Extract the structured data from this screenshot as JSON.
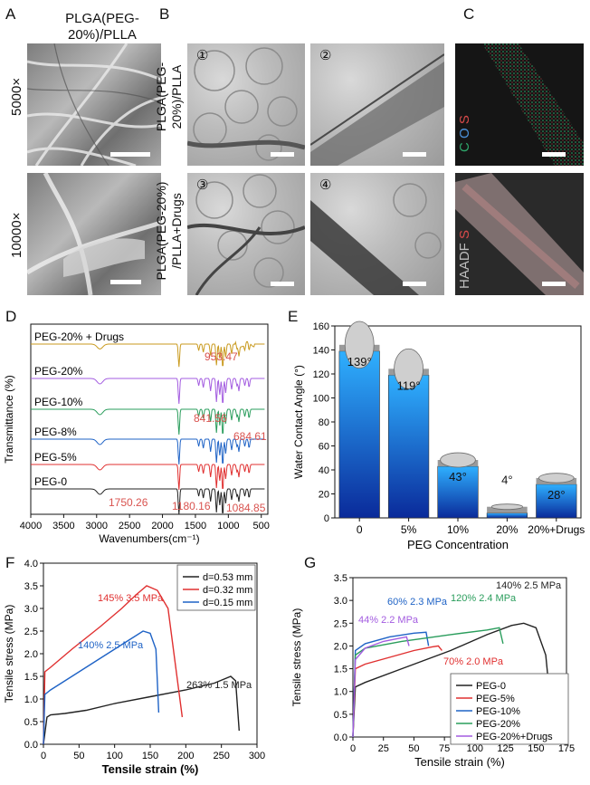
{
  "panel_letters": {
    "A": "A",
    "B": "B",
    "C": "C",
    "D": "D",
    "E": "E",
    "F": "F",
    "G": "G"
  },
  "panelA": {
    "title": "PLGA(PEG-\n20%)/PLLA",
    "mag_top": "5000×",
    "mag_bottom": "10000×"
  },
  "panelB": {
    "row1_label": "PLGA(PEG-\n20%)/PLLA",
    "row2_label": "PLGA(PEG-20%)\n/PLLA+Drugs",
    "nums": [
      "①",
      "②",
      "③",
      "④"
    ]
  },
  "panelC": {
    "top_label_C": "C",
    "top_label_O": "O",
    "top_label_S": "S",
    "bottom_label_HAADF": "HAADF",
    "bottom_label_S": "S"
  },
  "colors": {
    "black": "#222222",
    "red": "#e03030",
    "blue": "#1f63c6",
    "green": "#2a9d5c",
    "purple": "#a35ce0",
    "gold": "#c99a1e",
    "peak": "#d9534f"
  },
  "chart_data": [
    {
      "id": "D",
      "type": "line",
      "xlabel": "Wavenumbers(cm⁻¹)",
      "ylabel": "Transmittance (%)",
      "xlim": [
        4000,
        400
      ],
      "xticks": [
        4000,
        3500,
        3000,
        2500,
        2000,
        1500,
        1000,
        500
      ],
      "series": [
        {
          "name": "PEG-20% + Drugs",
          "color": "#c99a1e"
        },
        {
          "name": "PEG-20%",
          "color": "#a35ce0"
        },
        {
          "name": "PEG-10%",
          "color": "#2a9d5c"
        },
        {
          "name": "PEG-8%",
          "color": "#1f63c6"
        },
        {
          "name": "PEG-5%",
          "color": "#e03030"
        },
        {
          "name": "PEG-0",
          "color": "#222222"
        }
      ],
      "peaks_top": [
        "953.47",
        "841.56",
        "684.61"
      ],
      "peaks_bottom": [
        "1750.26",
        "1180.16",
        "1084.85"
      ]
    },
    {
      "id": "E",
      "type": "bar",
      "xlabel": "PEG Concentration",
      "ylabel": "Water Contact Angle (°)",
      "ylim": [
        0,
        160
      ],
      "yticks": [
        0,
        20,
        40,
        60,
        80,
        100,
        120,
        140,
        160
      ],
      "categories": [
        "0",
        "5%",
        "10%",
        "20%",
        "20%+Drugs"
      ],
      "values": [
        139,
        119,
        43,
        4,
        28
      ],
      "value_labels": [
        "139°",
        "119°",
        "43°",
        "4°",
        "28°"
      ]
    },
    {
      "id": "F",
      "type": "line",
      "xlabel": "Tensile strain (%)",
      "ylabel": "Tensile stress (MPa)",
      "xlim": [
        0,
        300
      ],
      "ylim": [
        0,
        4.0
      ],
      "xticks": [
        0,
        50,
        100,
        150,
        200,
        250,
        300
      ],
      "yticks": [
        0.0,
        0.5,
        1.0,
        1.5,
        2.0,
        2.5,
        3.0,
        3.5,
        4.0
      ],
      "series": [
        {
          "name": "d=0.53 mm",
          "color": "#222222",
          "points": [
            [
              0,
              0
            ],
            [
              5,
              0.6
            ],
            [
              10,
              0.65
            ],
            [
              30,
              0.68
            ],
            [
              60,
              0.75
            ],
            [
              100,
              0.9
            ],
            [
              150,
              1.05
            ],
            [
              200,
              1.2
            ],
            [
              240,
              1.35
            ],
            [
              263,
              1.5
            ],
            [
              270,
              1.4
            ],
            [
              275,
              0.3
            ]
          ]
        },
        {
          "name": "d=0.32 mm",
          "color": "#e03030",
          "points": [
            [
              0,
              0
            ],
            [
              2,
              1.6
            ],
            [
              10,
              1.7
            ],
            [
              40,
              2.1
            ],
            [
              80,
              2.6
            ],
            [
              110,
              3.0
            ],
            [
              130,
              3.3
            ],
            [
              145,
              3.5
            ],
            [
              160,
              3.4
            ],
            [
              175,
              3.0
            ],
            [
              195,
              0.6
            ]
          ]
        },
        {
          "name": "d=0.15 mm",
          "color": "#1f63c6",
          "points": [
            [
              0,
              0
            ],
            [
              2,
              1.1
            ],
            [
              10,
              1.2
            ],
            [
              40,
              1.5
            ],
            [
              80,
              1.9
            ],
            [
              110,
              2.2
            ],
            [
              130,
              2.4
            ],
            [
              140,
              2.5
            ],
            [
              150,
              2.45
            ],
            [
              158,
              2.1
            ],
            [
              162,
              0.7
            ]
          ]
        }
      ],
      "annotations": [
        {
          "text": "145% 3.5 MPa",
          "color": "#e03030"
        },
        {
          "text": "140% 2.5 MPa",
          "color": "#1f63c6"
        },
        {
          "text": "263% 1.5 MPa",
          "color": "#222222"
        }
      ],
      "legend": "top-right"
    },
    {
      "id": "G",
      "type": "line",
      "xlabel": "Tensile strain (%)",
      "ylabel": "Tensile stress (MPa)",
      "xlim": [
        0,
        175
      ],
      "ylim": [
        0,
        3.5
      ],
      "xticks": [
        0,
        25,
        50,
        75,
        100,
        125,
        150,
        175
      ],
      "yticks": [
        0.0,
        0.5,
        1.0,
        1.5,
        2.0,
        2.5,
        3.0,
        3.5
      ],
      "series": [
        {
          "name": "PEG-0",
          "color": "#222222",
          "points": [
            [
              0,
              0
            ],
            [
              2,
              1.1
            ],
            [
              10,
              1.2
            ],
            [
              40,
              1.5
            ],
            [
              80,
              1.9
            ],
            [
              110,
              2.25
            ],
            [
              130,
              2.45
            ],
            [
              140,
              2.5
            ],
            [
              150,
              2.4
            ],
            [
              158,
              1.8
            ],
            [
              162,
              0.7
            ]
          ]
        },
        {
          "name": "PEG-5%",
          "color": "#e03030",
          "points": [
            [
              0,
              0
            ],
            [
              2,
              1.5
            ],
            [
              10,
              1.6
            ],
            [
              30,
              1.75
            ],
            [
              50,
              1.9
            ],
            [
              65,
              1.98
            ],
            [
              70,
              2.0
            ],
            [
              73,
              1.9
            ]
          ]
        },
        {
          "name": "PEG-10%",
          "color": "#1f63c6",
          "points": [
            [
              0,
              0
            ],
            [
              2,
              1.9
            ],
            [
              10,
              2.05
            ],
            [
              30,
              2.2
            ],
            [
              50,
              2.28
            ],
            [
              60,
              2.3
            ],
            [
              62,
              2.0
            ]
          ]
        },
        {
          "name": "PEG-20%",
          "color": "#2a9d5c",
          "points": [
            [
              0,
              0
            ],
            [
              2,
              1.8
            ],
            [
              10,
              1.95
            ],
            [
              40,
              2.1
            ],
            [
              80,
              2.25
            ],
            [
              110,
              2.35
            ],
            [
              120,
              2.4
            ],
            [
              123,
              2.05
            ]
          ]
        },
        {
          "name": "PEG-20%+Drugs",
          "color": "#a35ce0",
          "points": [
            [
              0,
              0
            ],
            [
              2,
              1.7
            ],
            [
              10,
              1.95
            ],
            [
              25,
              2.1
            ],
            [
              40,
              2.18
            ],
            [
              44,
              2.2
            ],
            [
              46,
              2.0
            ]
          ]
        }
      ],
      "annotations": [
        {
          "text": "140% 2.5 MPa",
          "color": "#222222"
        },
        {
          "text": "120% 2.4 MPa",
          "color": "#2a9d5c"
        },
        {
          "text": "60% 2.3 MPa",
          "color": "#1f63c6"
        },
        {
          "text": "44% 2.2 MPa",
          "color": "#a35ce0"
        },
        {
          "text": "70% 2.0 MPa",
          "color": "#e03030"
        }
      ],
      "legend": "bottom-right"
    }
  ]
}
